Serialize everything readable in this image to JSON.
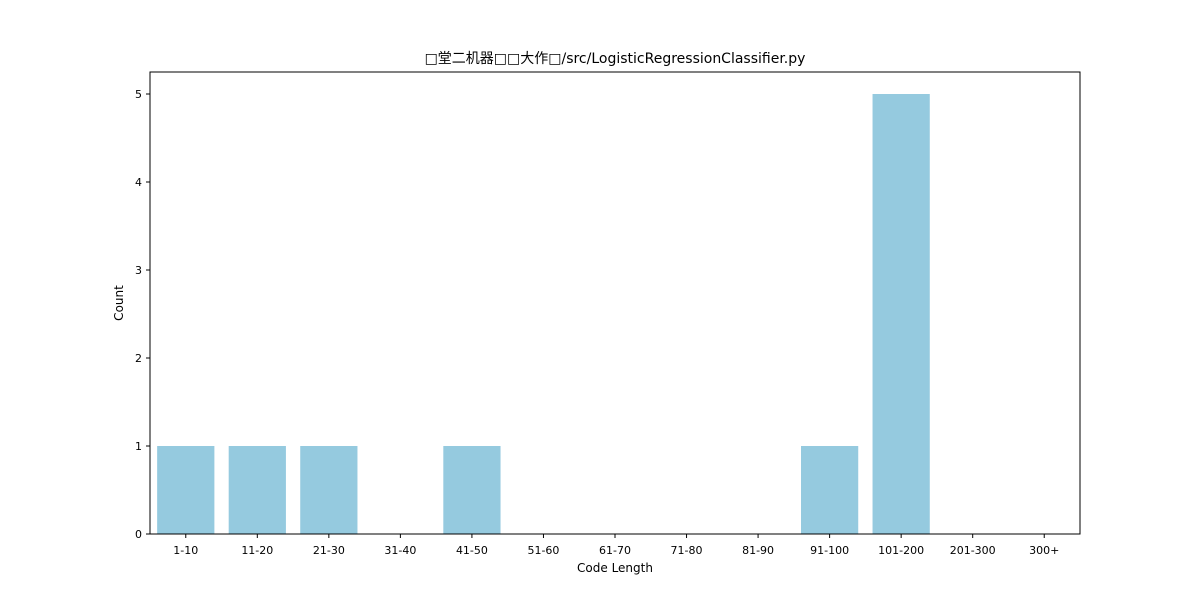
{
  "chart_data": {
    "type": "bar",
    "title": "□堂二机器□□大作□/src/LogisticRegressionClassifier.py",
    "xlabel": "Code Length",
    "ylabel": "Count",
    "categories": [
      "1-10",
      "11-20",
      "21-30",
      "31-40",
      "41-50",
      "51-60",
      "61-70",
      "71-80",
      "81-90",
      "91-100",
      "101-200",
      "201-300",
      "300+"
    ],
    "values": [
      1,
      1,
      1,
      0,
      1,
      0,
      0,
      0,
      0,
      1,
      5,
      0,
      0
    ],
    "ylim": [
      0,
      5.25
    ],
    "yticks": [
      0,
      1,
      2,
      3,
      4,
      5
    ],
    "bar_color": "#95cadf",
    "grid": false,
    "legend": "none"
  }
}
